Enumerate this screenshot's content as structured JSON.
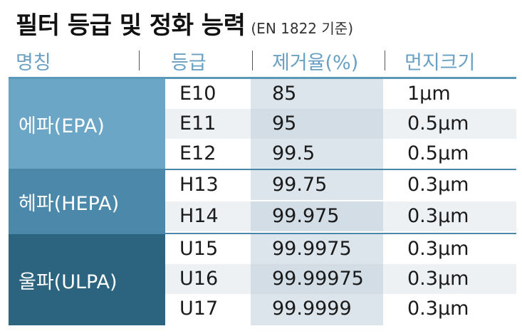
{
  "title": {
    "main": "필터 등급 및 정화 능력",
    "sub": "(EN 1822 기준)"
  },
  "headers": [
    "명칭",
    "등급",
    "제거율(%)",
    "먼지크기"
  ],
  "groups": [
    {
      "name": "에파(EPA)",
      "color": "#6ca6c6",
      "rows": [
        {
          "grade": "E10",
          "rate": "85",
          "size": "1μm"
        },
        {
          "grade": "E11",
          "rate": "95",
          "size": "0.5μm"
        },
        {
          "grade": "E12",
          "rate": "99.5",
          "size": "0.5μm"
        }
      ]
    },
    {
      "name": "헤파(HEPA)",
      "color": "#4b88aa",
      "rows": [
        {
          "grade": "H13",
          "rate": "99.75",
          "size": "0.3μm"
        },
        {
          "grade": "H14",
          "rate": "99.975",
          "size": "0.3μm"
        }
      ]
    },
    {
      "name": "울파(ULPA)",
      "color": "#2c6480",
      "rows": [
        {
          "grade": "U15",
          "rate": "99.9975",
          "size": "0.3μm"
        },
        {
          "grade": "U16",
          "rate": "99.99975",
          "size": "0.3μm"
        },
        {
          "grade": "U17",
          "rate": "99.9999",
          "size": "0.3μm"
        }
      ]
    }
  ]
}
